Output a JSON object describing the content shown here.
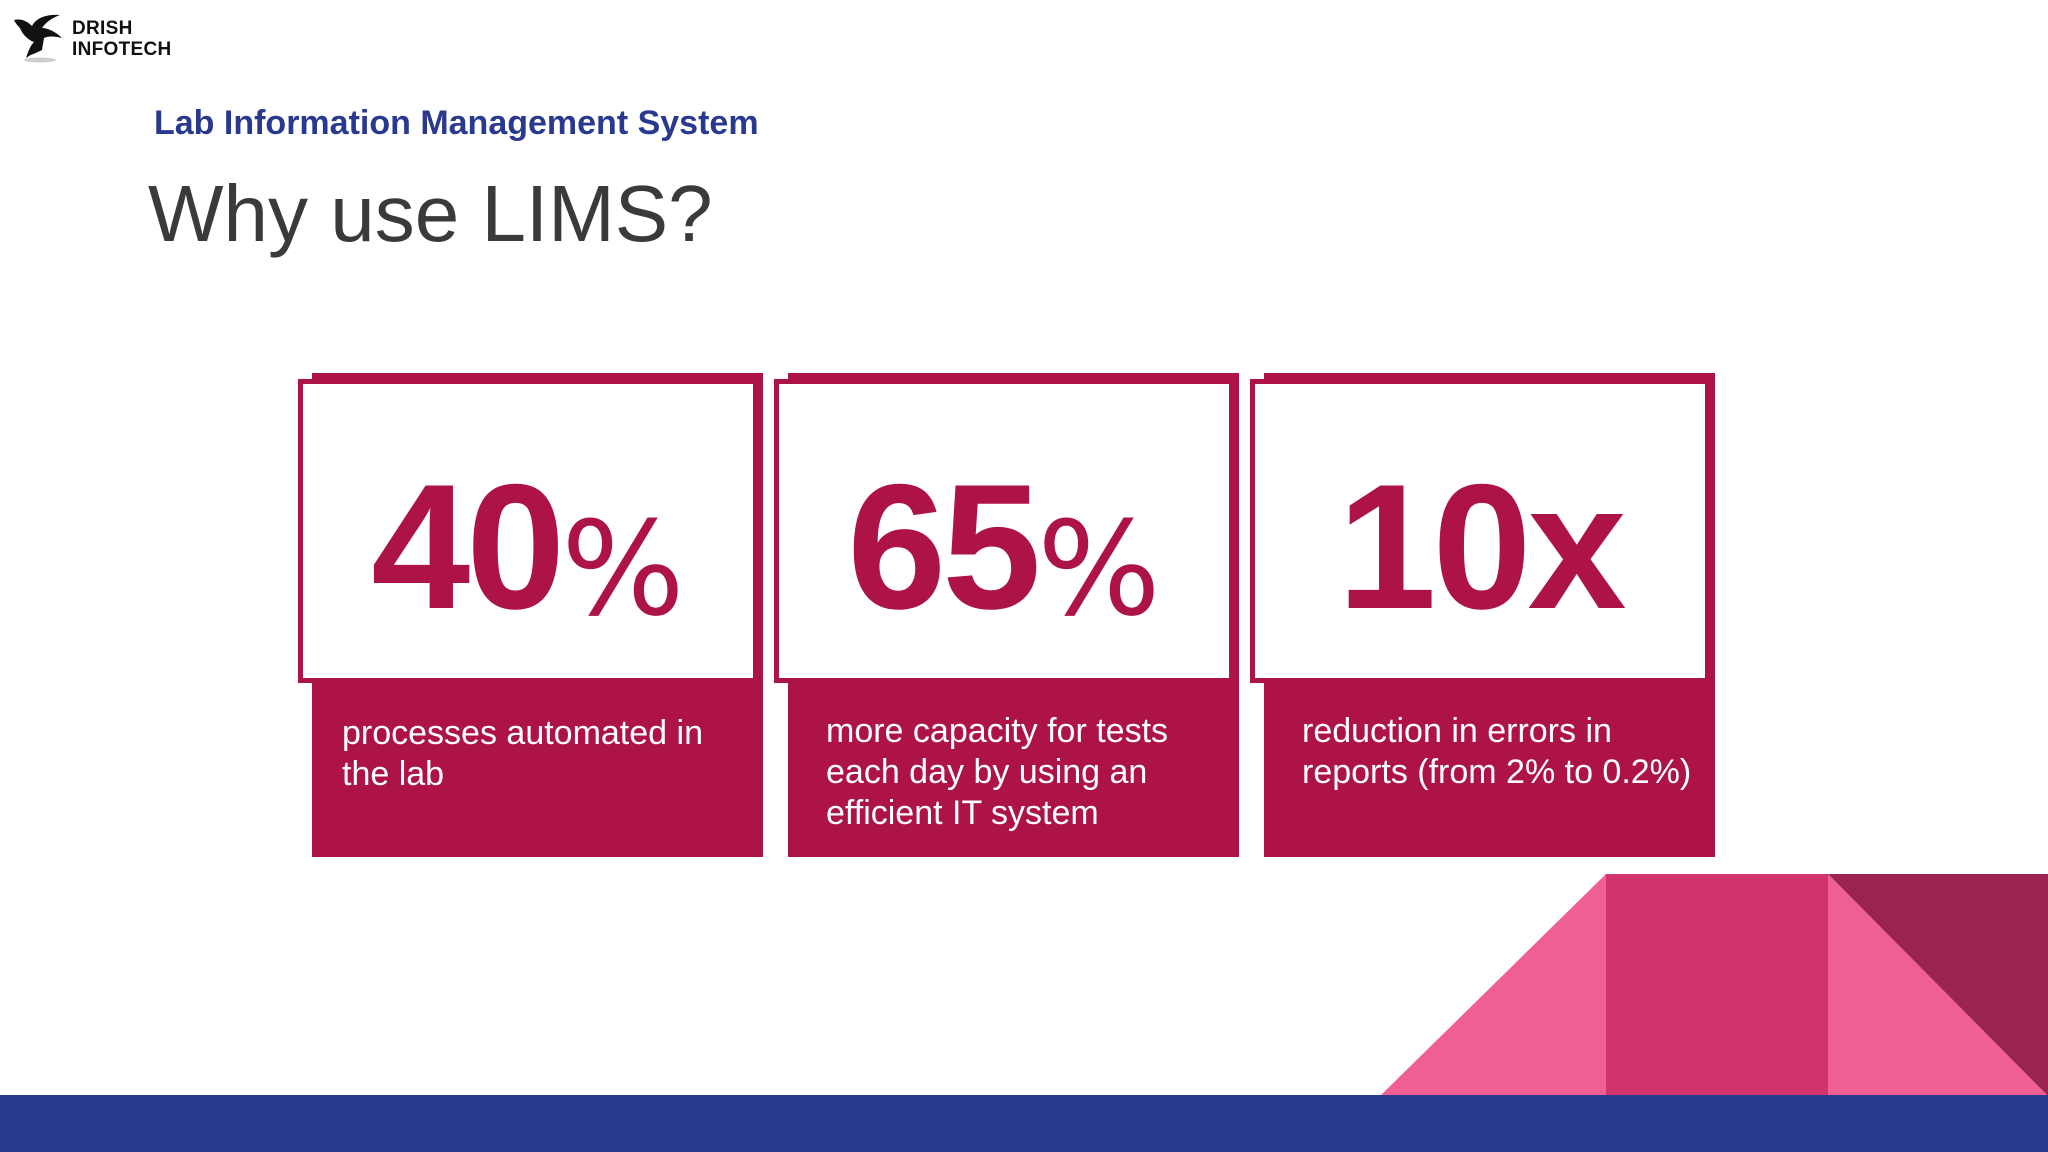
{
  "logo": {
    "line1": "DRISH",
    "line2": "INFOTECH"
  },
  "header": {
    "subtitle": "Lab Information Management System",
    "title": "Why use LIMS?"
  },
  "cards": [
    {
      "value": "40",
      "unit": "%",
      "description": "processes automated in the lab"
    },
    {
      "value": "65",
      "unit": "%",
      "description": "more capacity for tests each day by using an efficient IT system"
    },
    {
      "value": "10x",
      "unit": "",
      "description": "reduction in errors in reports (from 2% to 0.2%)"
    }
  ],
  "colors": {
    "accent": "#ad1346",
    "brand_blue": "#293a91",
    "title_gray": "#3a3a3a",
    "deco_pink_light": "#ef5f93",
    "deco_pink_mid": "#d1346c",
    "deco_wine": "#9b2352"
  }
}
